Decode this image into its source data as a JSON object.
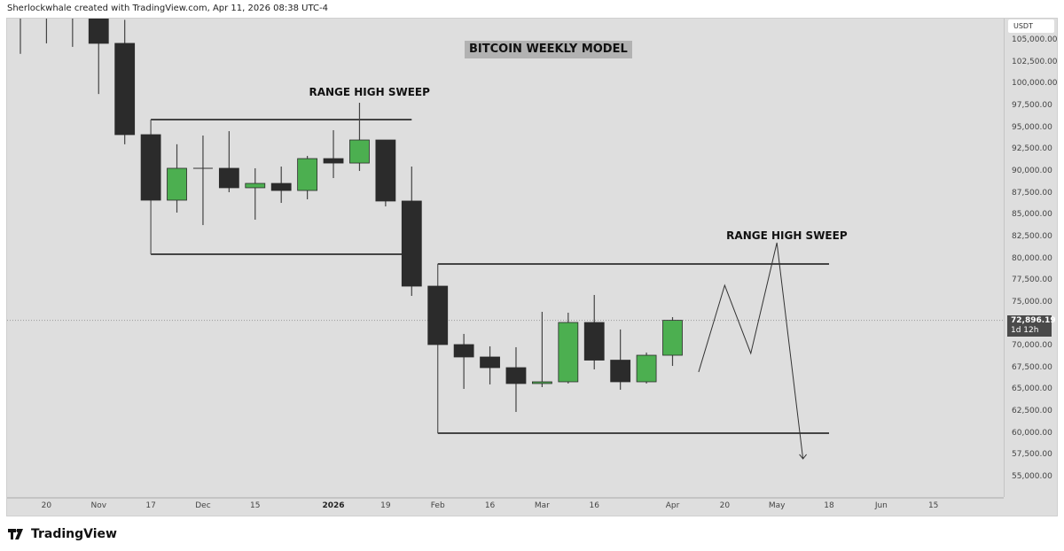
{
  "header": {
    "text": "Sherlockwhale created with TradingView.com, Apr 11, 2026 08:38 UTC-4"
  },
  "footer": {
    "logo_text": "TradingView",
    "logo_icon": "tradingview-logo-icon"
  },
  "chart_data": {
    "type": "candlestick",
    "title": "BITCOIN WEEKLY MODEL",
    "interval": "weekly",
    "currency": "USDT",
    "ylim": [
      52780,
      107430
    ],
    "grid": false,
    "colors": {
      "up": "#4caf50",
      "down": "#2b2b2b",
      "background": "#dedede",
      "line": "#111111"
    },
    "current_price": {
      "value": "72,896.19",
      "countdown": "1d 12h",
      "price": 72896.19
    },
    "price_ticks": [
      "105,000.00",
      "102,500.00",
      "100,000.00",
      "97,500.00",
      "95,000.00",
      "92,500.00",
      "90,000.00",
      "87,500.00",
      "85,000.00",
      "82,500.00",
      "80,000.00",
      "77,500.00",
      "75,000.00",
      "70,000.00",
      "67,500.00",
      "65,000.00",
      "62,500.00",
      "60,000.00",
      "57,500.00",
      "55,000.00"
    ],
    "price_tick_values": [
      105000,
      102500,
      100000,
      97500,
      95000,
      92500,
      90000,
      87500,
      85000,
      82500,
      80000,
      77500,
      75000,
      70000,
      67500,
      65000,
      62500,
      60000,
      57500,
      55000
    ],
    "time_ticks": [
      {
        "label": "20",
        "date": "2025-10-20"
      },
      {
        "label": "Nov",
        "date": "2025-11-03"
      },
      {
        "label": "17",
        "date": "2025-11-17"
      },
      {
        "label": "Dec",
        "date": "2025-12-01"
      },
      {
        "label": "15",
        "date": "2025-12-15"
      },
      {
        "label": "2026",
        "date": "2026-01-05",
        "bold": true
      },
      {
        "label": "19",
        "date": "2026-01-19"
      },
      {
        "label": "Feb",
        "date": "2026-02-02"
      },
      {
        "label": "16",
        "date": "2026-02-16"
      },
      {
        "label": "Mar",
        "date": "2026-03-02"
      },
      {
        "label": "16",
        "date": "2026-03-16"
      },
      {
        "label": "Apr",
        "date": "2026-04-06"
      },
      {
        "label": "20",
        "date": "2026-04-20"
      },
      {
        "label": "May",
        "date": "2026-05-04"
      },
      {
        "label": "18",
        "date": "2026-05-18"
      },
      {
        "label": "Jun",
        "date": "2026-06-01"
      },
      {
        "label": "15",
        "date": "2026-06-15"
      }
    ],
    "candles": [
      {
        "date": "2025-10-13",
        "o": 110000,
        "h": 112000,
        "l": 103400,
        "c": 108500
      },
      {
        "date": "2025-10-20",
        "o": 110000,
        "h": 112000,
        "l": 104600,
        "c": 109000
      },
      {
        "date": "2025-10-27",
        "o": 111000,
        "h": 113000,
        "l": 104200,
        "c": 110000
      },
      {
        "date": "2025-11-03",
        "o": 111000,
        "h": 112000,
        "l": 98800,
        "c": 104600
      },
      {
        "date": "2025-11-10",
        "o": 104600,
        "h": 107300,
        "l": 93050,
        "c": 94150
      },
      {
        "date": "2025-11-17",
        "o": 94150,
        "h": 94150,
        "l": 86650,
        "c": 86650
      },
      {
        "date": "2025-11-24",
        "o": 86650,
        "h": 93050,
        "l": 85230,
        "c": 90300
      },
      {
        "date": "2025-12-01",
        "o": 90300,
        "h": 94050,
        "l": 83800,
        "c": 90300
      },
      {
        "date": "2025-12-08",
        "o": 90300,
        "h": 94550,
        "l": 87560,
        "c": 88070
      },
      {
        "date": "2025-12-15",
        "o": 88070,
        "h": 90300,
        "l": 84420,
        "c": 88570
      },
      {
        "date": "2025-12-22",
        "o": 88570,
        "h": 90500,
        "l": 86340,
        "c": 87760
      },
      {
        "date": "2025-12-29",
        "o": 87760,
        "h": 91720,
        "l": 86750,
        "c": 91410
      },
      {
        "date": "2026-01-05",
        "o": 91410,
        "h": 94660,
        "l": 89180,
        "c": 90900
      },
      {
        "date": "2026-01-12",
        "o": 90900,
        "h": 97800,
        "l": 90000,
        "c": 93540
      },
      {
        "date": "2026-01-19",
        "o": 93540,
        "h": 93540,
        "l": 85940,
        "c": 86550
      },
      {
        "date": "2026-01-26",
        "o": 86550,
        "h": 90500,
        "l": 75700,
        "c": 76810
      },
      {
        "date": "2026-02-02",
        "o": 76810,
        "h": 76810,
        "l": 70120,
        "c": 70120
      },
      {
        "date": "2026-02-09",
        "o": 70120,
        "h": 71340,
        "l": 65050,
        "c": 68700
      },
      {
        "date": "2026-02-16",
        "o": 68700,
        "h": 69920,
        "l": 65560,
        "c": 67480
      },
      {
        "date": "2026-02-23",
        "o": 67480,
        "h": 69820,
        "l": 62410,
        "c": 65660
      },
      {
        "date": "2026-03-02",
        "o": 65660,
        "h": 73870,
        "l": 65250,
        "c": 65860
      },
      {
        "date": "2026-03-09",
        "o": 65860,
        "h": 73770,
        "l": 65660,
        "c": 72650
      },
      {
        "date": "2026-03-16",
        "o": 72650,
        "h": 75800,
        "l": 67280,
        "c": 68340
      },
      {
        "date": "2026-03-23",
        "o": 68340,
        "h": 71850,
        "l": 64950,
        "c": 65860
      },
      {
        "date": "2026-03-30",
        "o": 65860,
        "h": 69210,
        "l": 65660,
        "c": 68900
      },
      {
        "date": "2026-04-06",
        "o": 68900,
        "h": 73260,
        "l": 67680,
        "c": 72896.19
      }
    ],
    "ranges": [
      {
        "start": "2025-11-17",
        "end": "2026-01-26",
        "high": 95870,
        "low": 80460
      },
      {
        "start": "2026-02-02",
        "end": "2026-05-18",
        "high": 79350,
        "low": 59980
      }
    ],
    "projection": [
      {
        "date": "2026-04-13",
        "price": 66980
      },
      {
        "date": "2026-04-20",
        "price": 76910
      },
      {
        "date": "2026-04-27",
        "price": 69110
      },
      {
        "date": "2026-05-04",
        "price": 81780
      },
      {
        "date": "2026-05-11",
        "price": 57040
      }
    ],
    "annotations": [
      {
        "text": "RANGE HIGH SWEEP",
        "date": "2026-01-12",
        "price": 98900
      },
      {
        "text": "RANGE HIGH SWEEP",
        "date": "2026-05-04",
        "price": 82500
      }
    ]
  }
}
